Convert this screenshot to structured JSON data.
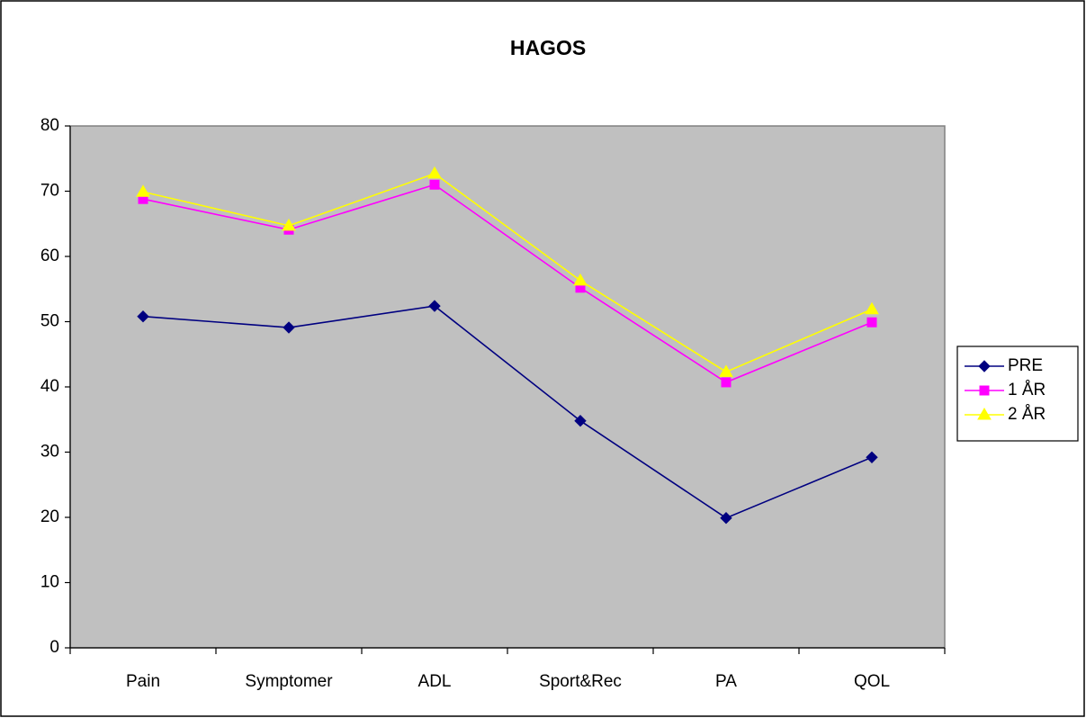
{
  "chart_data": {
    "type": "line",
    "title": "HAGOS",
    "categories": [
      "Pain",
      "Symptomer",
      "ADL",
      "Sport&Rec",
      "PA",
      "QOL"
    ],
    "series": [
      {
        "name": "PRE",
        "color": "#000080",
        "marker": "diamond",
        "values": [
          50.8,
          49.1,
          52.4,
          34.8,
          19.9,
          29.2
        ]
      },
      {
        "name": "1 ÅR",
        "color": "#FF00FF",
        "marker": "square",
        "values": [
          68.8,
          64.1,
          71.0,
          55.2,
          40.7,
          49.9
        ]
      },
      {
        "name": "2 ÅR",
        "color": "#FFFF00",
        "marker": "triangle",
        "values": [
          69.9,
          64.7,
          72.7,
          56.3,
          42.3,
          51.9
        ]
      }
    ],
    "ylim": [
      0,
      80
    ],
    "yticks": [
      0,
      10,
      20,
      30,
      40,
      50,
      60,
      70,
      80
    ],
    "plot_background": "#C0C0C0",
    "legend": "right",
    "grid": false
  }
}
